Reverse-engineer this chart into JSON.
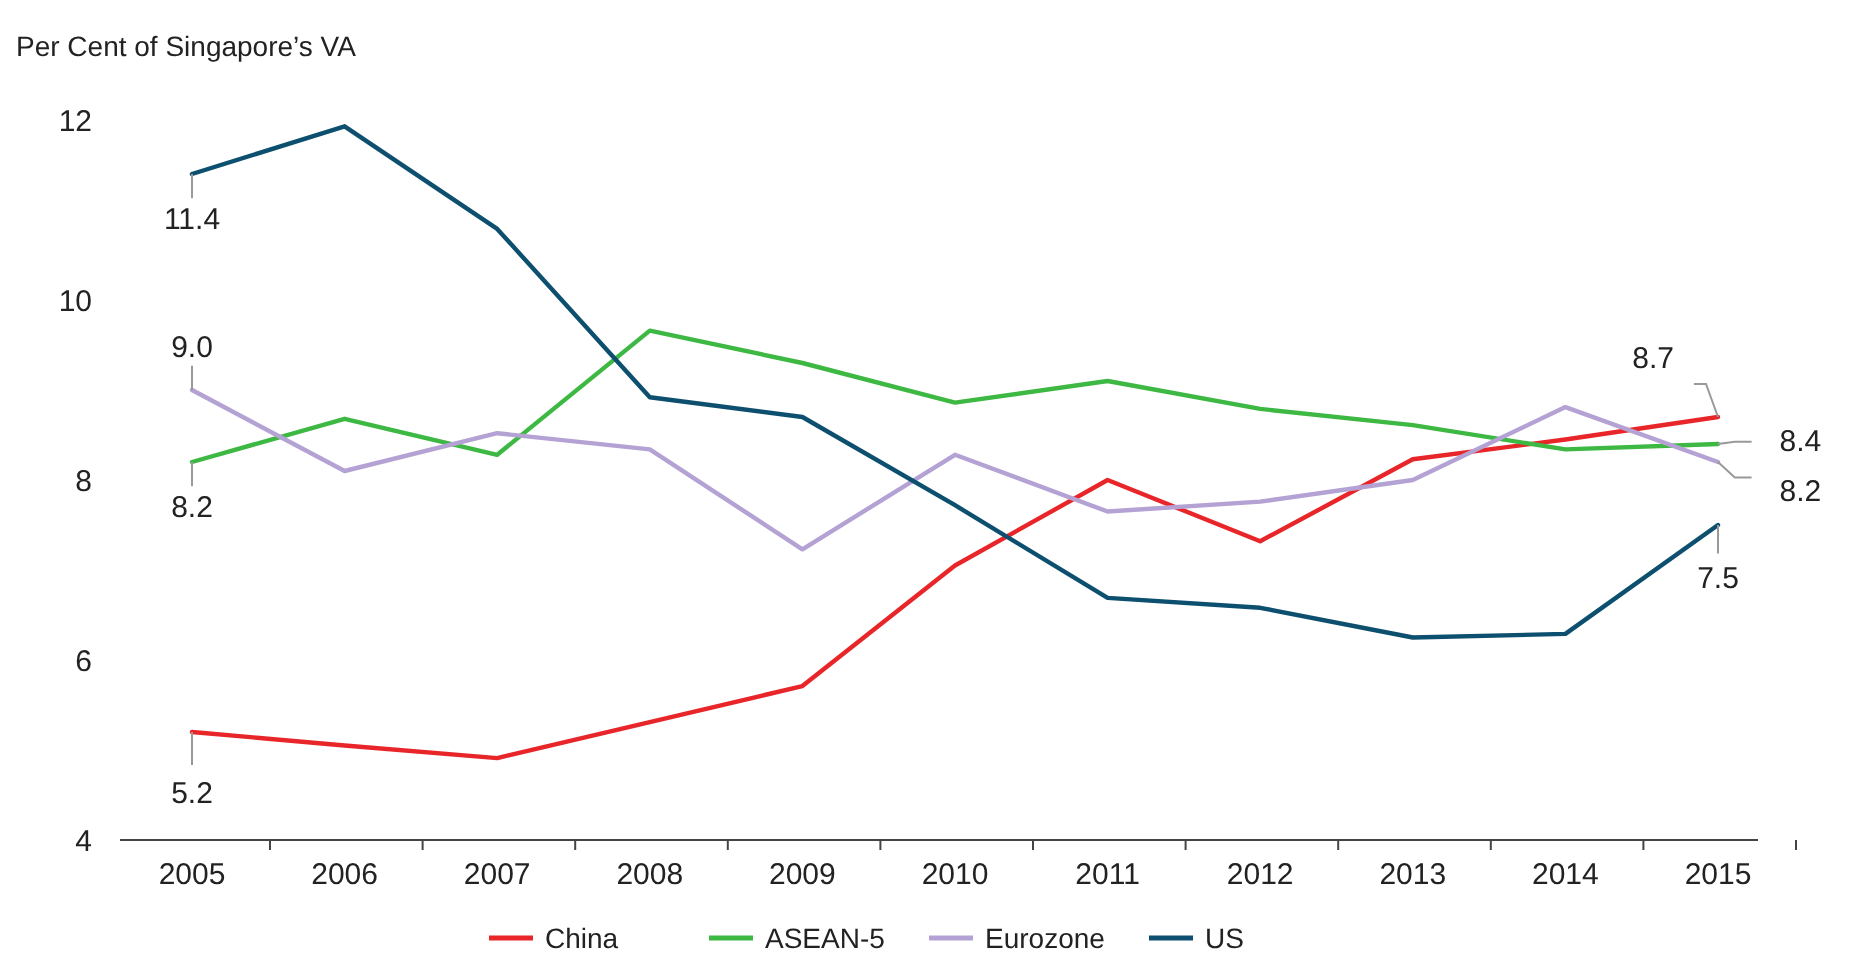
{
  "chart_data": {
    "type": "line",
    "ylabel": "Per Cent of Singapore’s VA",
    "categories": [
      "2005",
      "2006",
      "2007",
      "2008",
      "2009",
      "2010",
      "2011",
      "2012",
      "2013",
      "2014",
      "2015"
    ],
    "ylim": [
      4,
      12
    ],
    "yticks": [
      4,
      6,
      8,
      10,
      12
    ],
    "grid": false,
    "legend": "bottom",
    "marker": "none",
    "line_style": "solid",
    "series": [
      {
        "name": "China",
        "color": "#e8262a",
        "values": [
          5.2,
          5.05,
          4.91,
          5.31,
          5.71,
          7.05,
          8.0,
          7.32,
          8.23,
          8.45,
          8.7
        ],
        "value_labels": [
          "5.2",
          null,
          null,
          null,
          null,
          null,
          null,
          null,
          null,
          null,
          "8.7"
        ]
      },
      {
        "name": "ASEAN-5",
        "color": "#3db843",
        "values": [
          8.2,
          8.68,
          8.28,
          9.66,
          9.3,
          8.86,
          9.1,
          8.79,
          8.61,
          8.34,
          8.4
        ],
        "value_labels": [
          "8.2",
          null,
          null,
          null,
          null,
          null,
          null,
          null,
          null,
          null,
          "8.4"
        ]
      },
      {
        "name": "Eurozone",
        "color": "#b3a2d3",
        "values": [
          9.0,
          8.1,
          8.52,
          8.34,
          7.23,
          8.28,
          7.65,
          7.76,
          8.0,
          8.81,
          8.2
        ],
        "value_labels": [
          "9.0",
          null,
          null,
          null,
          null,
          null,
          null,
          null,
          null,
          null,
          "8.2"
        ]
      },
      {
        "name": "US",
        "color": "#0d4f6e",
        "values": [
          11.4,
          11.93,
          10.79,
          8.92,
          8.7,
          7.72,
          6.69,
          6.58,
          6.25,
          6.29,
          7.5
        ],
        "value_labels": [
          "11.4",
          null,
          null,
          null,
          null,
          null,
          null,
          null,
          null,
          null,
          "7.5"
        ]
      }
    ]
  }
}
